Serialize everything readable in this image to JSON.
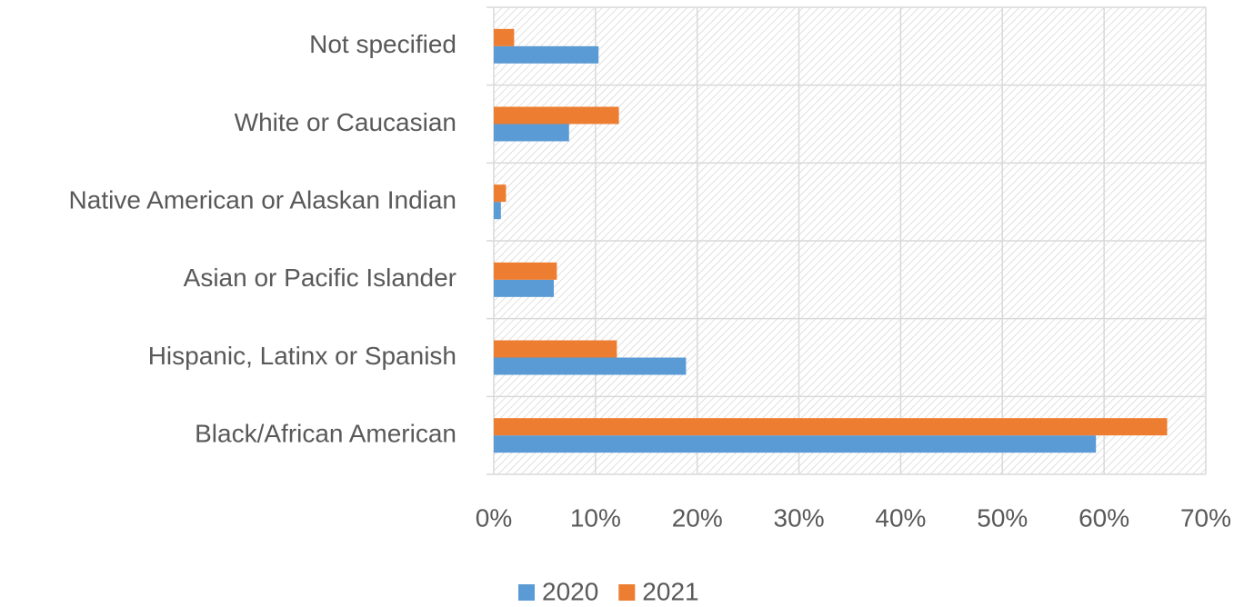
{
  "chart_data": {
    "type": "bar",
    "orientation": "horizontal",
    "categories": [
      "Not specified",
      "White or Caucasian",
      "Native American or Alaskan Indian",
      "Asian or Pacific Islander",
      "Hispanic, Latinx or Spanish",
      "Black/African American"
    ],
    "series": [
      {
        "name": "2020",
        "color": "#5b9bd5",
        "values": [
          10.3,
          7.4,
          0.7,
          5.9,
          18.9,
          59.2
        ]
      },
      {
        "name": "2021",
        "color": "#ed7d31",
        "values": [
          2.0,
          12.3,
          1.2,
          6.2,
          12.1,
          66.2
        ]
      }
    ],
    "xlim": [
      0,
      70
    ],
    "xticks": [
      {
        "value": 0,
        "label": "0%"
      },
      {
        "value": 10,
        "label": "10%"
      },
      {
        "value": 20,
        "label": "20%"
      },
      {
        "value": 30,
        "label": "30%"
      },
      {
        "value": 40,
        "label": "40%"
      },
      {
        "value": 50,
        "label": "50%"
      },
      {
        "value": 60,
        "label": "60%"
      },
      {
        "value": 70,
        "label": "70%"
      }
    ],
    "grid": true,
    "legend": "bottom"
  }
}
